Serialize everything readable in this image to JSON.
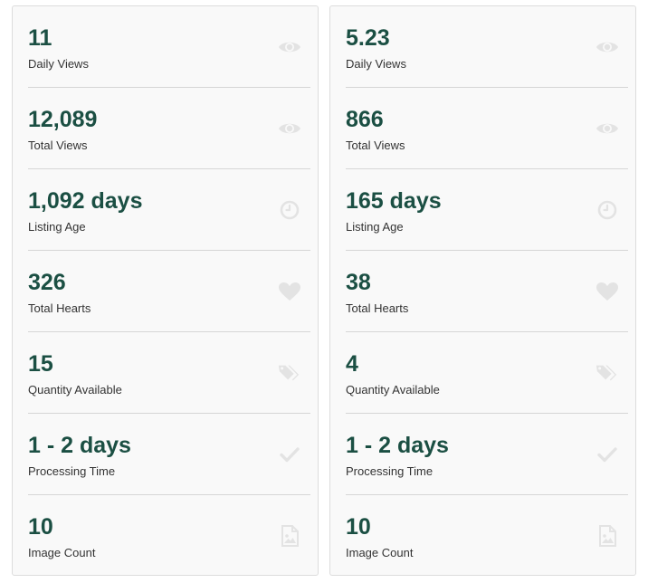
{
  "panels": [
    {
      "stats": [
        {
          "value": "11",
          "label": "Daily Views",
          "icon": "eye-icon"
        },
        {
          "value": "12,089",
          "label": "Total Views",
          "icon": "eye-icon"
        },
        {
          "value": "1,092 days",
          "label": "Listing Age",
          "icon": "clock-icon"
        },
        {
          "value": "326",
          "label": "Total Hearts",
          "icon": "heart-icon"
        },
        {
          "value": "15",
          "label": "Quantity Available",
          "icon": "tags-icon"
        },
        {
          "value": "1 - 2 days",
          "label": "Processing Time",
          "icon": "check-icon"
        },
        {
          "value": "10",
          "label": "Image Count",
          "icon": "image-icon"
        }
      ]
    },
    {
      "stats": [
        {
          "value": "5.23",
          "label": "Daily Views",
          "icon": "eye-icon"
        },
        {
          "value": "866",
          "label": "Total Views",
          "icon": "eye-icon"
        },
        {
          "value": "165 days",
          "label": "Listing Age",
          "icon": "clock-icon"
        },
        {
          "value": "38",
          "label": "Total Hearts",
          "icon": "heart-icon"
        },
        {
          "value": "4",
          "label": "Quantity Available",
          "icon": "tags-icon"
        },
        {
          "value": "1 - 2 days",
          "label": "Processing Time",
          "icon": "check-icon"
        },
        {
          "value": "10",
          "label": "Image Count",
          "icon": "image-icon"
        }
      ]
    }
  ],
  "colors": {
    "value_text": "#1b4f43",
    "label_text": "#333333",
    "icon": "#e3e3e3",
    "panel_bg": "#f9f9f9"
  }
}
